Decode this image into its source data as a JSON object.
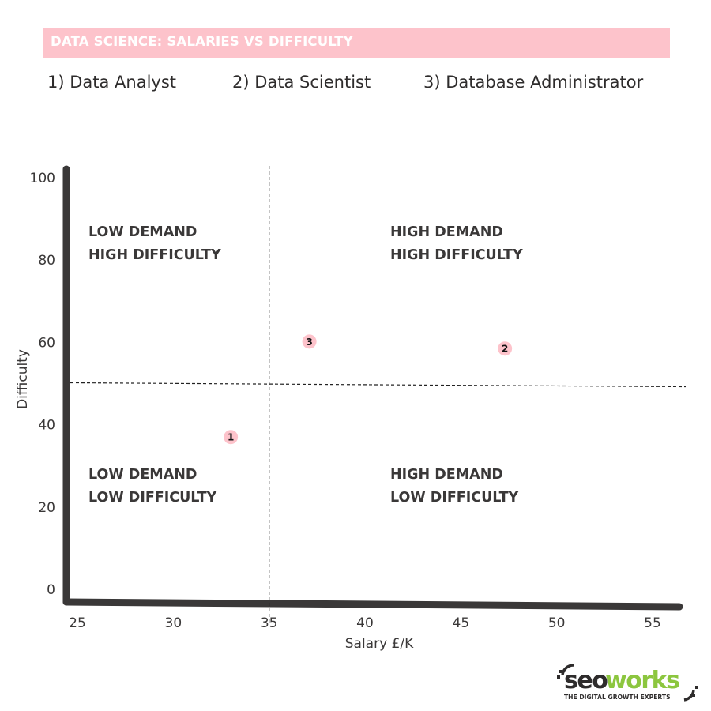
{
  "title": "DATA SCIENCE: SALARIES VS DIFFICULTY",
  "legend": [
    {
      "label": "1)  Data Analyst"
    },
    {
      "label": "2) Data Scientist"
    },
    {
      "label": "3) Database Administrator"
    }
  ],
  "colors": {
    "banner": "#fdc3cb",
    "marker": "#fdc3cb",
    "axis": "#3a3838",
    "text": "#3a3838",
    "logo_green": "#8cc63f"
  },
  "logo": {
    "word_a": "seo",
    "word_b": "works",
    "tagline": "THE DIGITAL GROWTH EXPERTS"
  },
  "chart_data": {
    "type": "scatter",
    "xlabel": "Salary £/K",
    "ylabel": "Difficulty",
    "xlim": [
      25,
      55
    ],
    "ylim": [
      0,
      100
    ],
    "x_ticks": [
      25,
      30,
      35,
      40,
      45,
      50,
      55
    ],
    "y_ticks": [
      0,
      20,
      40,
      60,
      80,
      100
    ],
    "grid": false,
    "divider_x": 35,
    "divider_y": 50,
    "points": [
      {
        "label": "1",
        "x": 33,
        "y": 37
      },
      {
        "label": "2",
        "x": 47.3,
        "y": 58.5
      },
      {
        "label": "3",
        "x": 37.1,
        "y": 60.2
      }
    ],
    "quadrants": [
      {
        "line1": "LOW DEMAND",
        "line2": "HIGH DIFFICULTY",
        "position": "top-left"
      },
      {
        "line1": "HIGH DEMAND",
        "line2": "HIGH DIFFICULTY",
        "position": "top-right"
      },
      {
        "line1": "LOW DEMAND",
        "line2": "LOW DIFFICULTY",
        "position": "bottom-left"
      },
      {
        "line1": "HIGH DEMAND",
        "line2": "LOW DIFFICULTY",
        "position": "bottom-right"
      }
    ]
  }
}
